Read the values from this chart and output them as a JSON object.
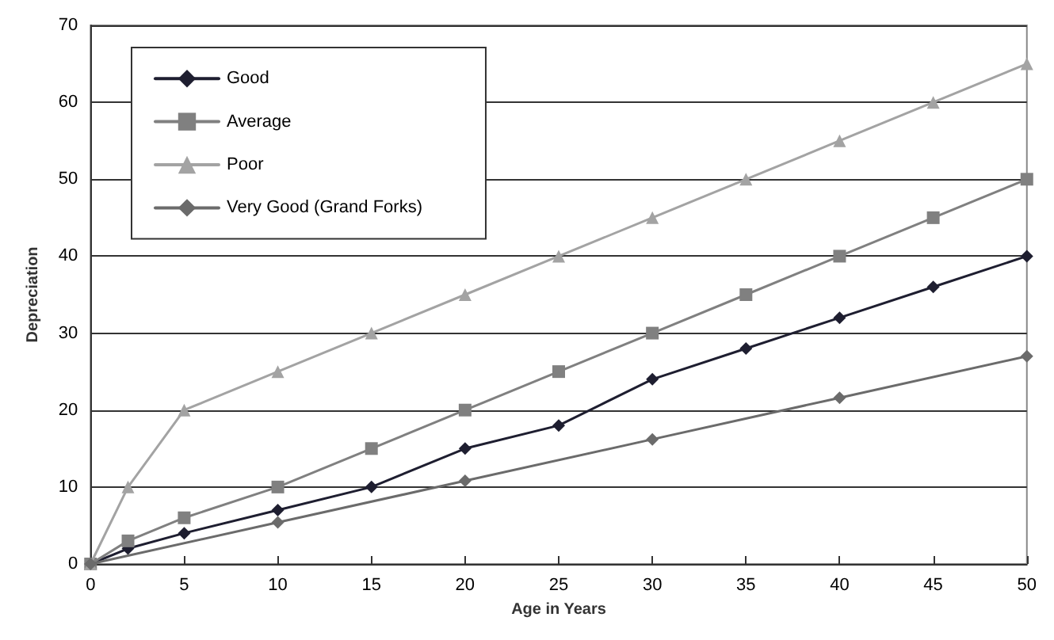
{
  "chart_data": {
    "type": "line",
    "xlabel": "Age in Years",
    "ylabel": "Depreciation",
    "xlim": [
      0,
      50
    ],
    "xticks": [
      0,
      5,
      10,
      15,
      20,
      25,
      30,
      35,
      40,
      45,
      50
    ],
    "ylim": [
      0,
      70
    ],
    "yticks": [
      0,
      10,
      20,
      30,
      40,
      50,
      60,
      70
    ],
    "grid": "y",
    "legend": "top left",
    "line_style": "solid",
    "series": [
      {
        "name": "Good",
        "color": "#1e1e30",
        "marker": "diamond",
        "x": [
          0,
          2,
          5,
          10,
          15,
          20,
          25,
          30,
          35,
          40,
          45,
          50
        ],
        "values": [
          0,
          2,
          4,
          7,
          10,
          15,
          18,
          24,
          28,
          32,
          36,
          40
        ]
      },
      {
        "name": "Average",
        "color": "#808080",
        "marker": "square",
        "x": [
          0,
          2,
          5,
          10,
          15,
          20,
          25,
          30,
          35,
          40,
          45,
          50
        ],
        "values": [
          0,
          3,
          6,
          10,
          15,
          20,
          25,
          30,
          35,
          40,
          45,
          50
        ]
      },
      {
        "name": "Poor",
        "color": "#a3a3a3",
        "marker": "triangle",
        "x": [
          0,
          2,
          5,
          10,
          15,
          20,
          25,
          30,
          35,
          40,
          45,
          50
        ],
        "values": [
          0,
          10,
          20,
          25,
          30,
          35,
          40,
          45,
          50,
          55,
          60,
          65
        ]
      },
      {
        "name": "Very Good (Grand Forks)",
        "color": "#6b6b6b",
        "marker": "diamond",
        "x": [
          0,
          10,
          20,
          30,
          40,
          50
        ],
        "values": [
          0,
          5.4,
          10.8,
          16.2,
          21.6,
          27
        ]
      }
    ]
  }
}
